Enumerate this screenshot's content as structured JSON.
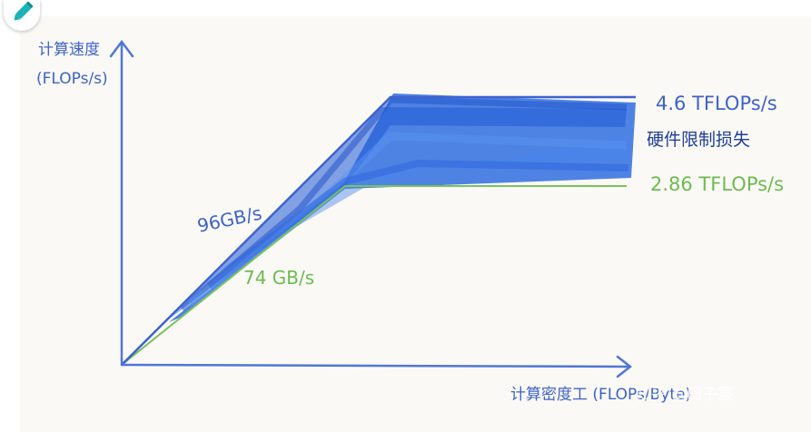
{
  "diagram": {
    "y_axis_label_line1": "计算速度",
    "y_axis_label_line2": "(FLOPs/s)",
    "x_axis_label": "计算密度工 (FLOPs/Byte)",
    "upper_ceiling_label": "4.6 TFLOPs/s",
    "hardware_loss_label": "硬件限制损失",
    "lower_ceiling_label": "2.86 TFLOPs/s",
    "upper_bandwidth_label": "96GB/s",
    "lower_bandwidth_label": "74 GB/s",
    "watermark": "知乎 @田子宸"
  },
  "colors": {
    "background": "#fbf9f6",
    "axis": "#4f77d6",
    "upper_line": "#3c63cf",
    "lower_line": "#79c35a",
    "shading": "#2f6fe0",
    "label_blue": "#3d63c8",
    "label_green": "#6cbc4f"
  },
  "icons": {
    "pen": "pen-icon"
  }
}
